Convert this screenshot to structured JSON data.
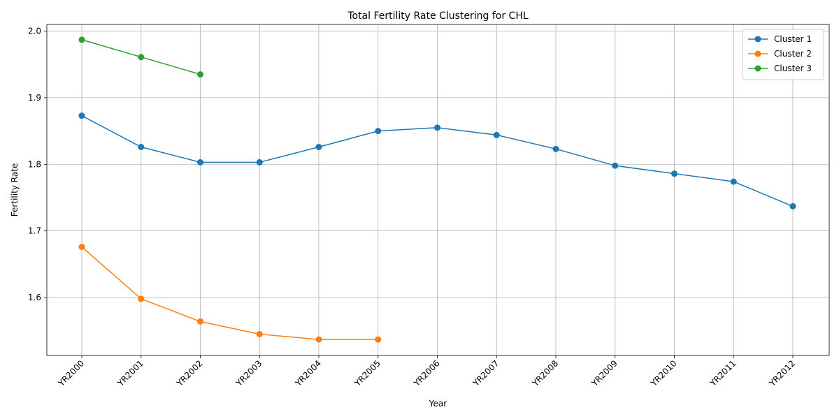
{
  "chart_data": {
    "type": "line",
    "title": "Total Fertility Rate Clustering for CHL",
    "xlabel": "Year",
    "ylabel": "Fertility Rate",
    "categories": [
      "YR2000",
      "YR2001",
      "YR2002",
      "YR2003",
      "YR2004",
      "YR2005",
      "YR2006",
      "YR2007",
      "YR2008",
      "YR2009",
      "YR2010",
      "YR2011",
      "YR2012"
    ],
    "ylim": [
      1.513,
      2.01
    ],
    "yticks": [
      1.6,
      1.7,
      1.8,
      1.9,
      2.0
    ],
    "ytick_labels": [
      "1.6",
      "1.7",
      "1.8",
      "1.9",
      "2.0"
    ],
    "grid": true,
    "legend_position": "top-right",
    "series": [
      {
        "name": "Cluster 1",
        "color": "#1f77b4",
        "values": [
          1.873,
          1.826,
          1.803,
          1.803,
          1.826,
          1.85,
          1.855,
          1.844,
          1.823,
          1.798,
          1.786,
          1.774,
          1.737
        ]
      },
      {
        "name": "Cluster 2",
        "color": "#ff7f0e",
        "values": [
          1.676,
          1.598,
          1.564,
          1.545,
          1.537,
          1.537,
          null,
          null,
          null,
          null,
          null,
          null,
          null
        ]
      },
      {
        "name": "Cluster 3",
        "color": "#2ca02c",
        "values": [
          1.987,
          1.961,
          1.935,
          null,
          null,
          null,
          null,
          null,
          null,
          null,
          null,
          null,
          null
        ]
      }
    ]
  }
}
